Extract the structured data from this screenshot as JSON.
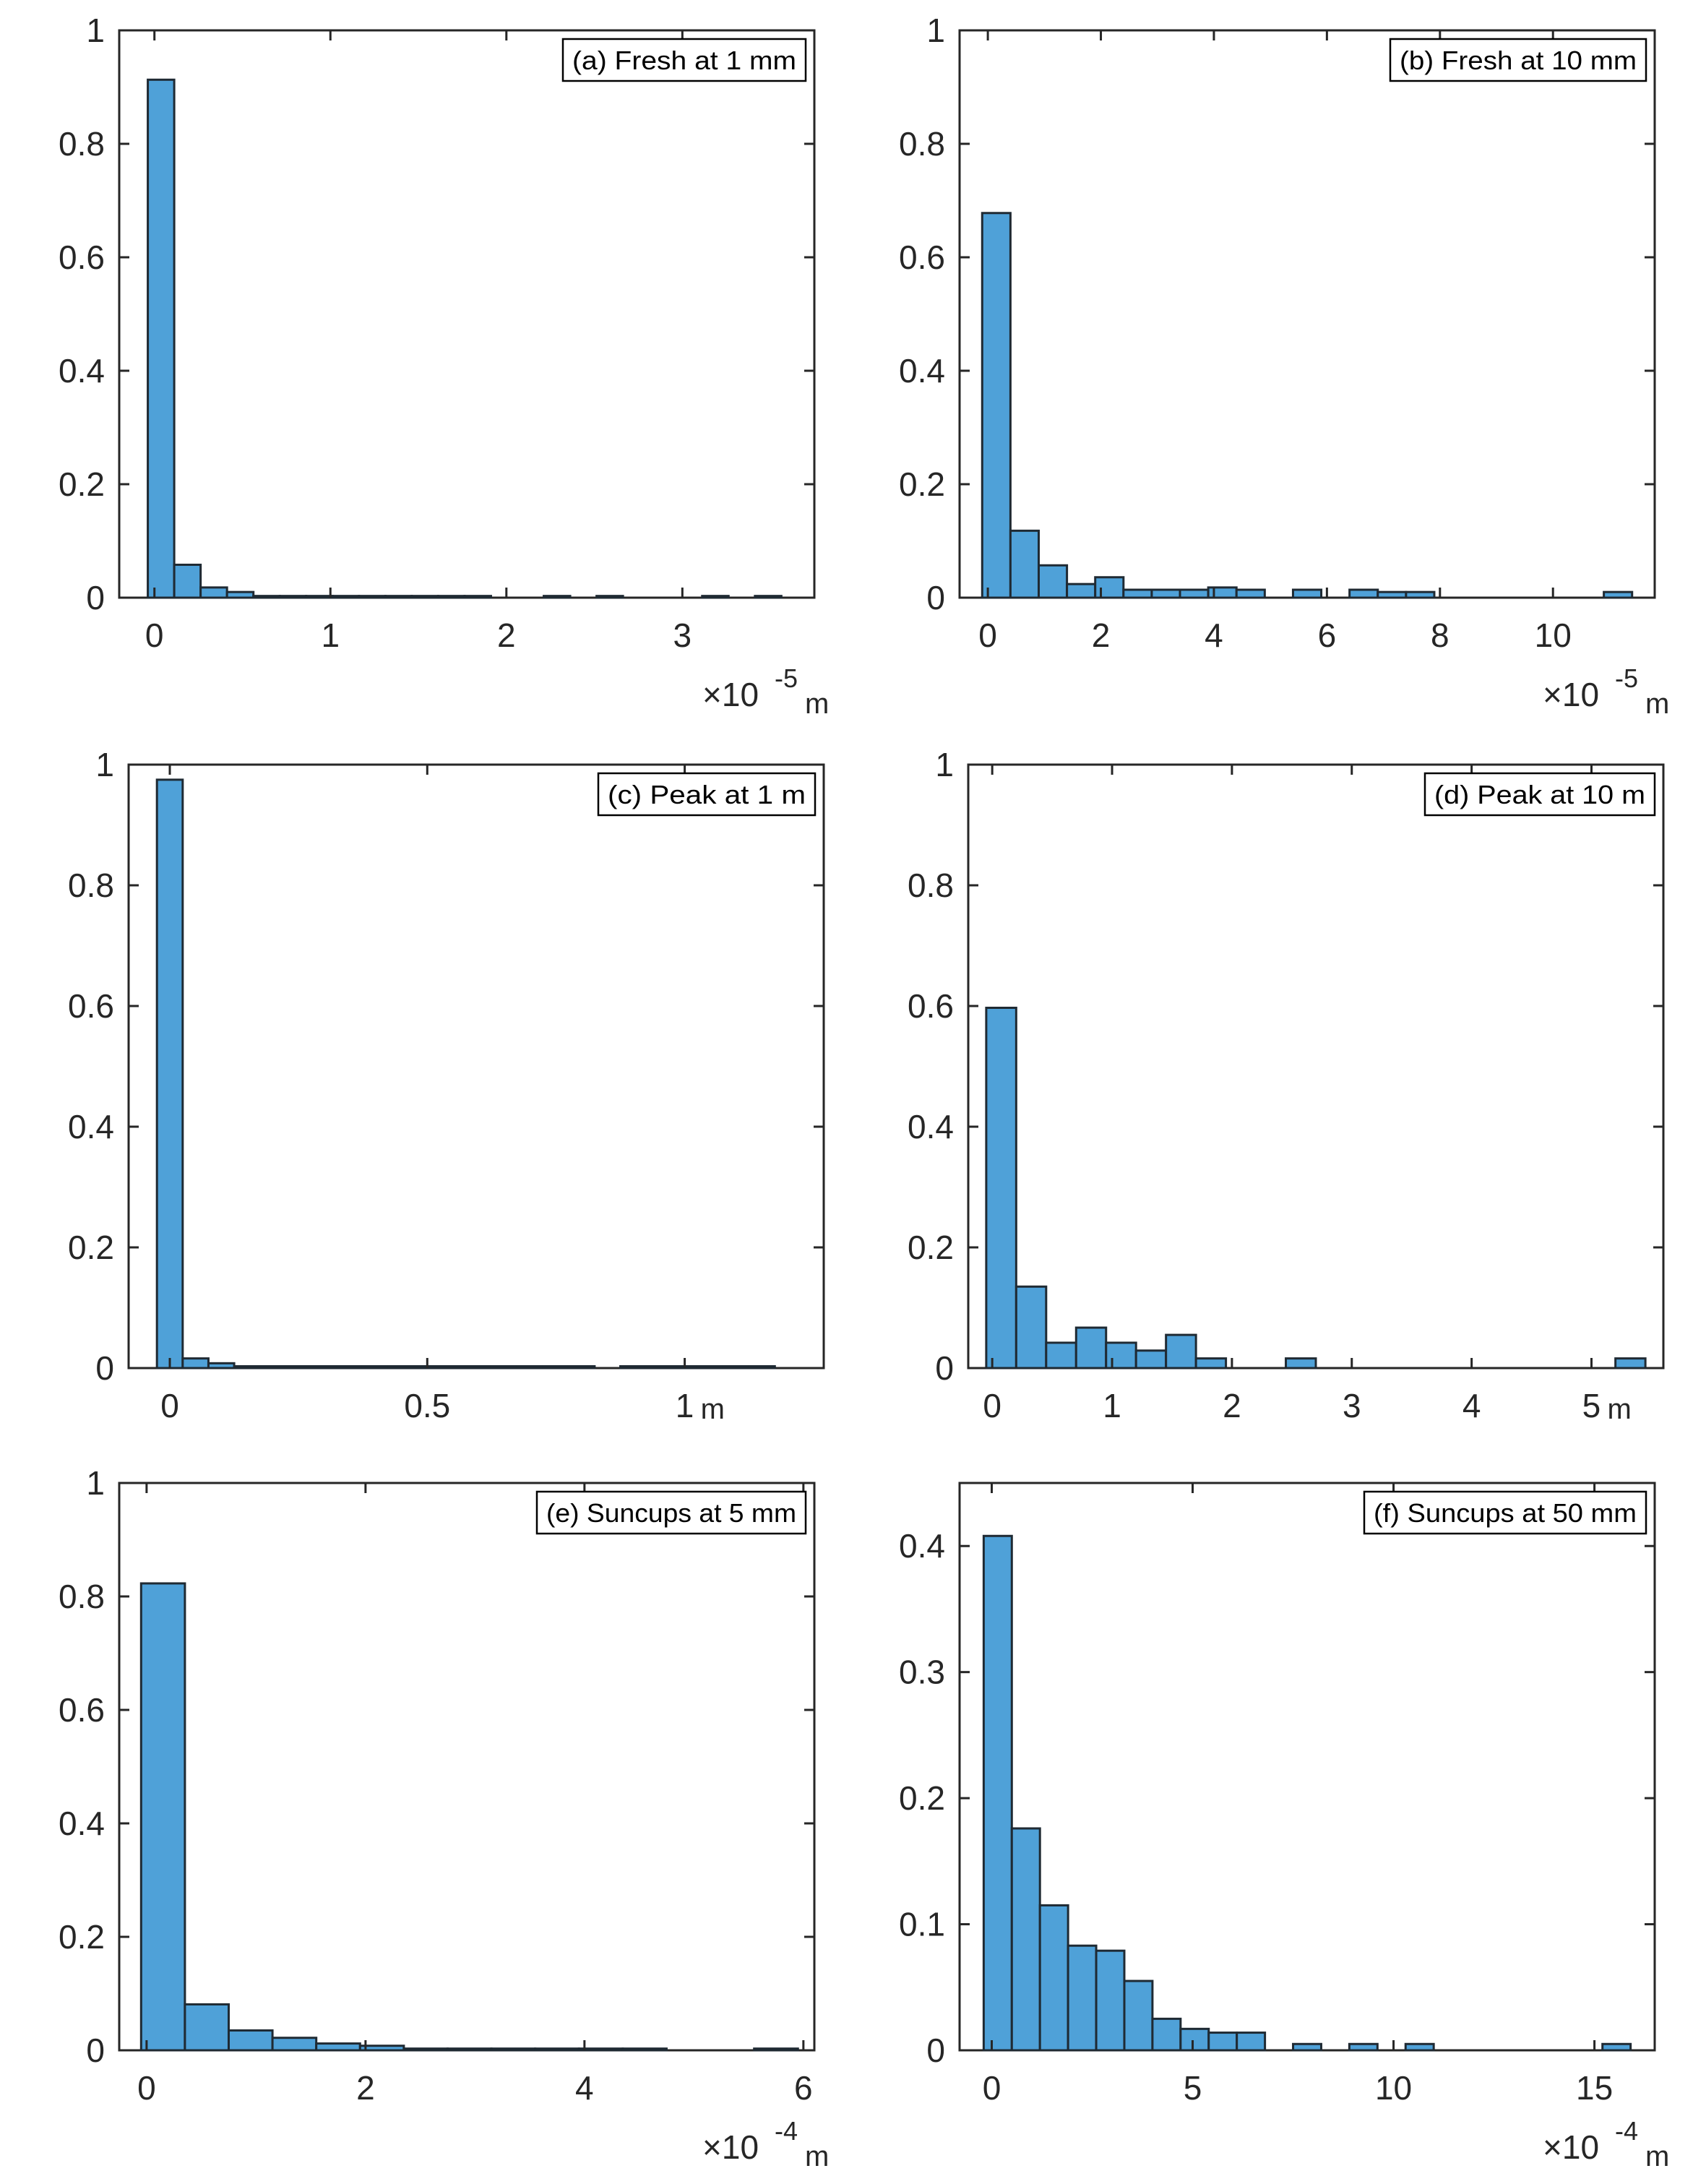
{
  "style": {
    "bar_fill": "#4fa1d8",
    "bar_stroke": "#1f2a33",
    "axis_color": "#262626",
    "background": "#ffffff"
  },
  "chart_data": [
    {
      "id": "a",
      "type": "bar",
      "legend": "(a) Fresh at 1 mm",
      "legend_placement": "top-right",
      "bin_edges": [
        -0.0375,
        0.1125,
        0.2625,
        0.4125,
        0.5625,
        0.7125,
        0.8625,
        1.0125,
        1.1625,
        1.3125,
        1.4625,
        1.6125,
        1.7625,
        1.9125,
        2.0625,
        2.2125,
        2.3625,
        2.5125,
        2.6625,
        2.8125,
        2.9625,
        3.1125,
        3.2625,
        3.4125,
        3.5625
      ],
      "values": [
        0.913,
        0.058,
        0.018,
        0.01,
        0.003,
        0.003,
        0.003,
        0.003,
        0.003,
        0.003,
        0.003,
        0.003,
        0.003,
        0,
        0,
        0.003,
        0,
        0.003,
        0,
        0,
        0,
        0.003,
        0,
        0.003
      ],
      "xlim": [
        -0.2,
        3.75
      ],
      "ylim": [
        0,
        1
      ],
      "xticks": [
        0,
        1,
        2,
        3
      ],
      "xtick_labels": [
        "0",
        "1",
        "2",
        "3"
      ],
      "yticks": [
        0,
        0.2,
        0.4,
        0.6,
        0.8,
        1
      ],
      "ytick_labels": [
        "0",
        "0.2",
        "0.4",
        "0.6",
        "0.8",
        "1"
      ],
      "exponent_prefix": "×10",
      "exponent_power": "-5",
      "exponent_unit": "m",
      "xlabel_suffix": ""
    },
    {
      "id": "b",
      "type": "bar",
      "legend": "(b) Fresh at 10 mm",
      "legend_placement": "top-right",
      "bin_edges": [
        -0.1,
        0.4,
        0.9,
        1.4,
        1.9,
        2.4,
        2.9,
        3.4,
        3.9,
        4.4,
        4.9,
        5.4,
        5.9,
        6.4,
        6.9,
        7.4,
        7.9,
        8.4,
        8.9,
        9.4,
        9.9,
        10.4,
        10.9,
        11.4
      ],
      "values": [
        0.678,
        0.118,
        0.057,
        0.024,
        0.036,
        0.014,
        0.014,
        0.014,
        0.018,
        0.014,
        0,
        0.014,
        0,
        0.014,
        0.01,
        0.01,
        0,
        0,
        0,
        0,
        0,
        0,
        0.01
      ],
      "xlim": [
        -0.5,
        11.8
      ],
      "ylim": [
        0,
        1
      ],
      "xticks": [
        0,
        2,
        4,
        6,
        8,
        10
      ],
      "xtick_labels": [
        "0",
        "2",
        "4",
        "6",
        "8",
        "10"
      ],
      "yticks": [
        0,
        0.2,
        0.4,
        0.6,
        0.8,
        1
      ],
      "ytick_labels": [
        "0",
        "0.2",
        "0.4",
        "0.6",
        "0.8",
        "1"
      ],
      "exponent_prefix": "×10",
      "exponent_power": "-5",
      "exponent_unit": "m",
      "xlabel_suffix": ""
    },
    {
      "id": "c",
      "type": "bar",
      "legend": "(c) Peak at 1 m",
      "legend_placement": "top-right",
      "bin_edges": [
        -0.025,
        0.025,
        0.075,
        0.125,
        0.175,
        0.225,
        0.275,
        0.325,
        0.375,
        0.425,
        0.475,
        0.525,
        0.575,
        0.625,
        0.675,
        0.725,
        0.775,
        0.825,
        0.875,
        0.925,
        0.975,
        1.025,
        1.075,
        1.125,
        1.175
      ],
      "values": [
        0.975,
        0.016,
        0.008,
        0.003,
        0.003,
        0.003,
        0.003,
        0.003,
        0.003,
        0.003,
        0.003,
        0.003,
        0.003,
        0.003,
        0.003,
        0.003,
        0.003,
        0,
        0.003,
        0.003,
        0.003,
        0.003,
        0.003,
        0.003
      ],
      "xlim": [
        -0.08,
        1.27
      ],
      "ylim": [
        0,
        1
      ],
      "xticks": [
        0,
        0.5,
        1
      ],
      "xtick_labels": [
        "0",
        "0.5",
        "1"
      ],
      "yticks": [
        0,
        0.2,
        0.4,
        0.6,
        0.8,
        1
      ],
      "ytick_labels": [
        "0",
        "0.2",
        "0.4",
        "0.6",
        "0.8",
        "1"
      ],
      "exponent_prefix": "",
      "exponent_power": "",
      "exponent_unit": "",
      "xlabel_suffix": "m"
    },
    {
      "id": "d",
      "type": "bar",
      "legend": "(d) Peak at 10 m",
      "legend_placement": "top-right",
      "bin_edges": [
        -0.05,
        0.2,
        0.45,
        0.7,
        0.95,
        1.2,
        1.45,
        1.7,
        1.95,
        2.2,
        2.45,
        2.7,
        2.95,
        3.2,
        3.45,
        3.7,
        3.95,
        4.2,
        4.45,
        4.7,
        4.95,
        5.2,
        5.45
      ],
      "values": [
        0.597,
        0.135,
        0.042,
        0.067,
        0.042,
        0.029,
        0.055,
        0.016,
        0,
        0,
        0.016,
        0,
        0,
        0,
        0,
        0,
        0,
        0,
        0,
        0,
        0,
        0.016
      ],
      "xlim": [
        -0.2,
        5.6
      ],
      "ylim": [
        0,
        1
      ],
      "xticks": [
        0,
        1,
        2,
        3,
        4,
        5
      ],
      "xtick_labels": [
        "0",
        "1",
        "2",
        "3",
        "4",
        "5"
      ],
      "yticks": [
        0,
        0.2,
        0.4,
        0.6,
        0.8,
        1
      ],
      "ytick_labels": [
        "0",
        "0.2",
        "0.4",
        "0.6",
        "0.8",
        "1"
      ],
      "exponent_prefix": "",
      "exponent_power": "",
      "exponent_unit": "",
      "xlabel_suffix": "m"
    },
    {
      "id": "e",
      "type": "bar",
      "legend": "(e) Suncups at 5 mm",
      "legend_placement": "top-right",
      "bin_edges": [
        -0.05,
        0.35,
        0.75,
        1.15,
        1.55,
        1.95,
        2.35,
        2.75,
        3.15,
        3.55,
        3.95,
        4.35,
        4.75,
        5.15,
        5.55,
        5.95
      ],
      "values": [
        0.823,
        0.081,
        0.035,
        0.022,
        0.012,
        0.008,
        0.003,
        0.003,
        0.003,
        0.003,
        0.003,
        0.003,
        0,
        0,
        0.003
      ],
      "xlim": [
        -0.25,
        6.1
      ],
      "ylim": [
        0,
        1
      ],
      "xticks": [
        0,
        2,
        4,
        6
      ],
      "xtick_labels": [
        "0",
        "2",
        "4",
        "6"
      ],
      "yticks": [
        0,
        0.2,
        0.4,
        0.6,
        0.8,
        1
      ],
      "ytick_labels": [
        "0",
        "0.2",
        "0.4",
        "0.6",
        "0.8",
        "1"
      ],
      "exponent_prefix": "×10",
      "exponent_power": "-4",
      "exponent_unit": "m",
      "xlabel_suffix": ""
    },
    {
      "id": "f",
      "type": "bar",
      "legend": "(f) Suncups at 50 mm",
      "legend_placement": "top-right",
      "bin_edges": [
        -0.2,
        0.5,
        1.2,
        1.9,
        2.6,
        3.3,
        4.0,
        4.7,
        5.4,
        6.1,
        6.8,
        7.5,
        8.2,
        8.9,
        9.6,
        10.3,
        11.0,
        11.7,
        12.4,
        13.1,
        13.8,
        14.5,
        15.2,
        15.9
      ],
      "values": [
        0.408,
        0.176,
        0.115,
        0.083,
        0.079,
        0.055,
        0.025,
        0.017,
        0.014,
        0.014,
        0,
        0.005,
        0,
        0.005,
        0,
        0.005,
        0,
        0,
        0,
        0,
        0,
        0,
        0.005
      ],
      "xlim": [
        -0.8,
        16.5
      ],
      "ylim": [
        0,
        0.45
      ],
      "xticks": [
        0,
        5,
        10,
        15
      ],
      "xtick_labels": [
        "0",
        "5",
        "10",
        "15"
      ],
      "yticks": [
        0,
        0.1,
        0.2,
        0.3,
        0.4
      ],
      "ytick_labels": [
        "0",
        "0.1",
        "0.2",
        "0.3",
        "0.4"
      ],
      "exponent_prefix": "×10",
      "exponent_power": "-4",
      "exponent_unit": "m",
      "xlabel_suffix": ""
    }
  ]
}
